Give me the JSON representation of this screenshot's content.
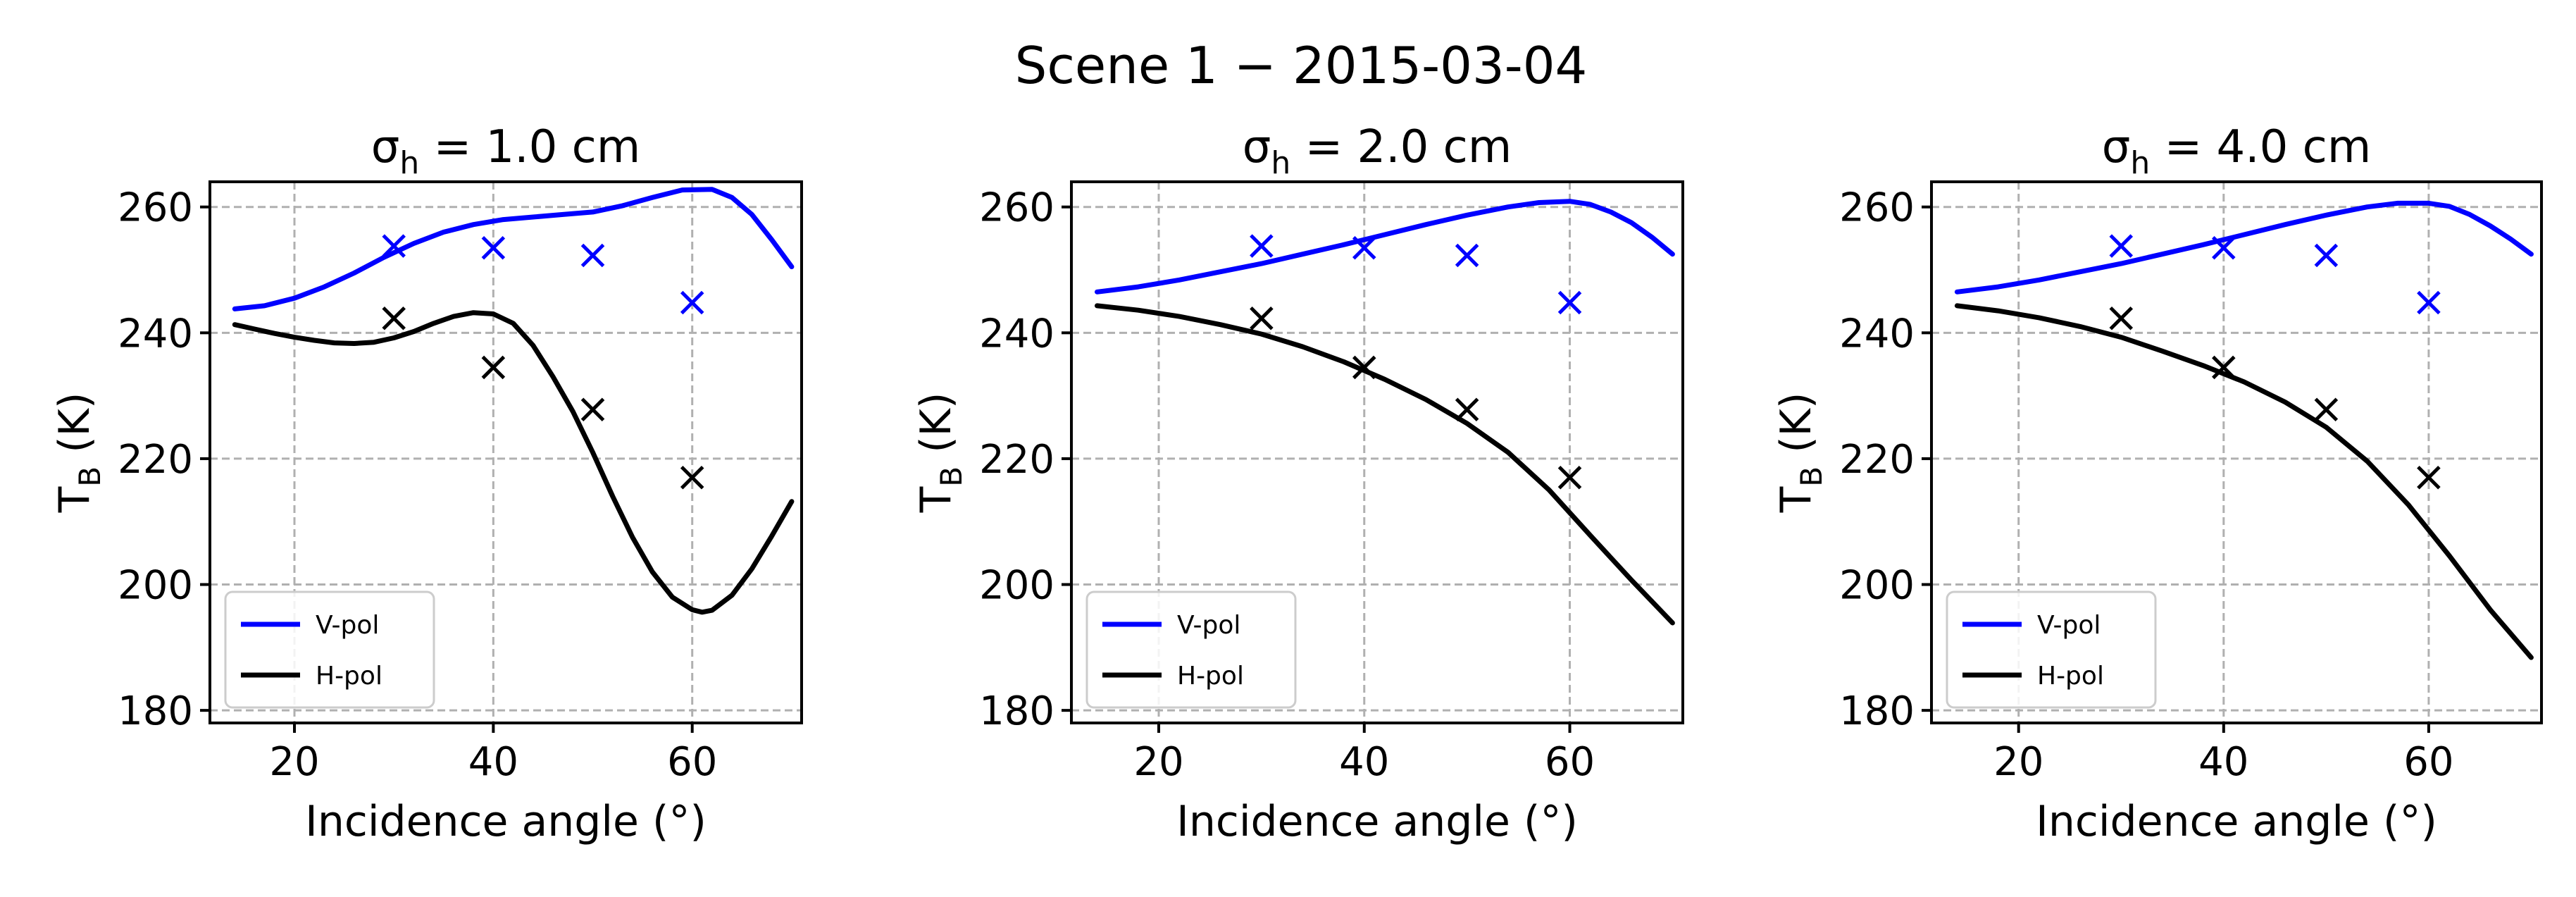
{
  "figure": {
    "title": "Scene 1 − 2015-03-04"
  },
  "chart_data": [
    {
      "type": "line",
      "title_base": "σ",
      "title_sub": "h",
      "title_rest": " = 1.0 cm",
      "xlabel": "Incidence angle (°)",
      "ylabel_base": "T",
      "ylabel_sub": "B",
      "ylabel_rest": " (K)",
      "xlim": [
        11.5,
        71
      ],
      "ylim": [
        178,
        264
      ],
      "xticks": [
        20,
        40,
        60
      ],
      "yticks": [
        180,
        200,
        220,
        240,
        260
      ],
      "grid": true,
      "legend_position": "lower-left",
      "series": [
        {
          "name": "V-pol",
          "color": "#0000ff",
          "x": [
            14,
            17,
            20,
            23,
            26,
            29,
            32,
            35,
            38,
            41,
            44,
            47,
            50,
            53,
            56,
            59,
            62,
            64,
            66,
            68,
            70
          ],
          "y": [
            243.8,
            244.3,
            245.5,
            247.3,
            249.5,
            252.0,
            254.2,
            256.0,
            257.2,
            258.0,
            258.4,
            258.8,
            259.2,
            260.2,
            261.5,
            262.7,
            262.8,
            261.5,
            258.8,
            254.8,
            250.5
          ]
        },
        {
          "name": "H-pol",
          "color": "#000000",
          "x": [
            14,
            16,
            18,
            20,
            22,
            24,
            26,
            28,
            30,
            32,
            34,
            36,
            38,
            40,
            42,
            44,
            46,
            48,
            50,
            52,
            54,
            56,
            58,
            60,
            61,
            62,
            64,
            66,
            68,
            70
          ],
          "y": [
            241.3,
            240.6,
            239.9,
            239.3,
            238.8,
            238.4,
            238.3,
            238.5,
            239.2,
            240.2,
            241.5,
            242.6,
            243.2,
            243.0,
            241.5,
            238.0,
            233.0,
            227.5,
            221.0,
            214.0,
            207.5,
            202.0,
            198.0,
            196.0,
            195.6,
            195.9,
            198.3,
            202.5,
            207.7,
            213.2
          ]
        }
      ],
      "markers": [
        {
          "name": "V-pol",
          "color": "#0000ff",
          "x": [
            30,
            40,
            50,
            60
          ],
          "y": [
            253.8,
            253.5,
            252.3,
            244.8
          ]
        },
        {
          "name": "H-pol",
          "color": "#000000",
          "x": [
            30,
            40,
            50,
            60
          ],
          "y": [
            242.3,
            234.5,
            227.8,
            217.0
          ]
        }
      ]
    },
    {
      "type": "line",
      "title_base": "σ",
      "title_sub": "h",
      "title_rest": " = 2.0 cm",
      "xlabel": "Incidence angle (°)",
      "ylabel_base": "T",
      "ylabel_sub": "B",
      "ylabel_rest": " (K)",
      "xlim": [
        11.5,
        71
      ],
      "ylim": [
        178,
        264
      ],
      "xticks": [
        20,
        40,
        60
      ],
      "yticks": [
        180,
        200,
        220,
        240,
        260
      ],
      "grid": true,
      "legend_position": "lower-left",
      "series": [
        {
          "name": "V-pol",
          "color": "#0000ff",
          "x": [
            14,
            18,
            22,
            26,
            30,
            34,
            38,
            42,
            46,
            50,
            54,
            57,
            60,
            62,
            64,
            66,
            68,
            70
          ],
          "y": [
            246.5,
            247.3,
            248.4,
            249.7,
            251.0,
            252.5,
            254.0,
            255.6,
            257.2,
            258.7,
            260.0,
            260.7,
            260.9,
            260.4,
            259.2,
            257.5,
            255.2,
            252.5
          ]
        },
        {
          "name": "H-pol",
          "color": "#000000",
          "x": [
            14,
            18,
            22,
            26,
            30,
            34,
            38,
            42,
            46,
            50,
            54,
            58,
            62,
            66,
            70
          ],
          "y": [
            244.3,
            243.6,
            242.6,
            241.3,
            239.8,
            237.8,
            235.4,
            232.6,
            229.4,
            225.6,
            221.0,
            215.0,
            207.8,
            200.7,
            193.9
          ]
        }
      ],
      "markers": [
        {
          "name": "V-pol",
          "color": "#0000ff",
          "x": [
            30,
            40,
            50,
            60
          ],
          "y": [
            253.8,
            253.5,
            252.3,
            244.8
          ]
        },
        {
          "name": "H-pol",
          "color": "#000000",
          "x": [
            30,
            40,
            50,
            60
          ],
          "y": [
            242.3,
            234.5,
            227.8,
            217.0
          ]
        }
      ]
    },
    {
      "type": "line",
      "title_base": "σ",
      "title_sub": "h",
      "title_rest": " = 4.0 cm",
      "xlabel": "Incidence angle (°)",
      "ylabel_base": "T",
      "ylabel_sub": "B",
      "ylabel_rest": " (K)",
      "xlim": [
        11.5,
        71
      ],
      "ylim": [
        178,
        264
      ],
      "xticks": [
        20,
        40,
        60
      ],
      "yticks": [
        180,
        200,
        220,
        240,
        260
      ],
      "grid": true,
      "legend_position": "lower-left",
      "series": [
        {
          "name": "V-pol",
          "color": "#0000ff",
          "x": [
            14,
            18,
            22,
            26,
            30,
            34,
            38,
            42,
            46,
            50,
            54,
            57,
            60,
            62,
            64,
            66,
            68,
            70
          ],
          "y": [
            246.5,
            247.3,
            248.4,
            249.7,
            251.0,
            252.5,
            254.0,
            255.6,
            257.2,
            258.7,
            260.0,
            260.6,
            260.6,
            260.1,
            258.8,
            257.0,
            254.9,
            252.5
          ]
        },
        {
          "name": "H-pol",
          "color": "#000000",
          "x": [
            14,
            18,
            22,
            26,
            30,
            34,
            38,
            42,
            46,
            50,
            54,
            58,
            62,
            66,
            70
          ],
          "y": [
            244.3,
            243.5,
            242.4,
            241.0,
            239.3,
            237.1,
            234.8,
            232.2,
            229.0,
            225.0,
            219.6,
            212.7,
            204.6,
            196.0,
            188.4
          ]
        }
      ],
      "markers": [
        {
          "name": "V-pol",
          "color": "#0000ff",
          "x": [
            30,
            40,
            50,
            60
          ],
          "y": [
            253.8,
            253.5,
            252.3,
            244.8
          ]
        },
        {
          "name": "H-pol",
          "color": "#000000",
          "x": [
            30,
            40,
            50,
            60
          ],
          "y": [
            242.3,
            234.5,
            227.8,
            217.0
          ]
        }
      ]
    }
  ]
}
